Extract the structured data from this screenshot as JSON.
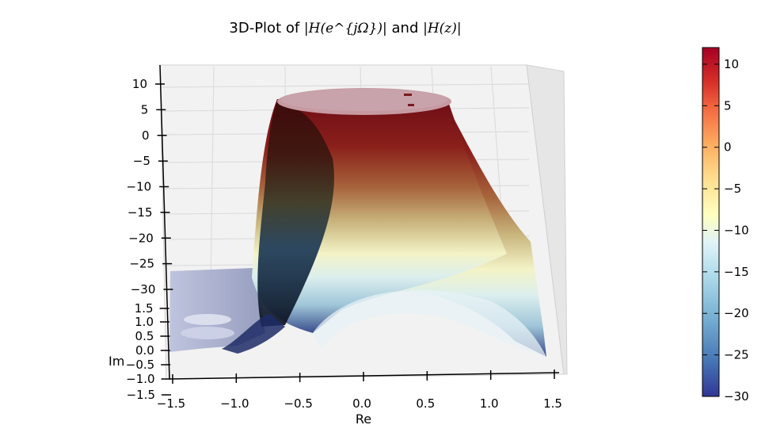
{
  "chart_data": {
    "type": "surface",
    "title_prefix": "3D-Plot of ",
    "title_math_1": "|H(e^{jΩ})|",
    "title_and": " and ",
    "title_math_2": "|H(z)|",
    "xlabel": "Re",
    "ylabel": "Im",
    "zlim": [
      -30,
      12
    ],
    "xlim": [
      -1.5,
      1.5
    ],
    "ylim": [
      -1.5,
      1.5
    ],
    "x_ticks": [
      "−1.5",
      "−1.0",
      "−0.5",
      "0.0",
      "0.5",
      "1.0",
      "1.5"
    ],
    "y_ticks": [
      "−1.5",
      "−1.0",
      "−0.5",
      "0.0",
      "0.5",
      "1.0",
      "1.5"
    ],
    "z_ticks": [
      "10",
      "5",
      "0",
      "−5",
      "−10",
      "−15",
      "−20",
      "−25",
      "−30"
    ],
    "colorbar_ticks": [
      "10",
      "5",
      "0",
      "−5",
      "−10",
      "−15",
      "−20",
      "−25",
      "−30"
    ],
    "colorbar_range": [
      -30,
      12
    ],
    "colormap": [
      "#313695",
      "#4575b4",
      "#74add1",
      "#abd9e9",
      "#e0f3f8",
      "#ffffbf",
      "#fee090",
      "#fdae61",
      "#f46d43",
      "#d73027",
      "#a50026"
    ]
  }
}
